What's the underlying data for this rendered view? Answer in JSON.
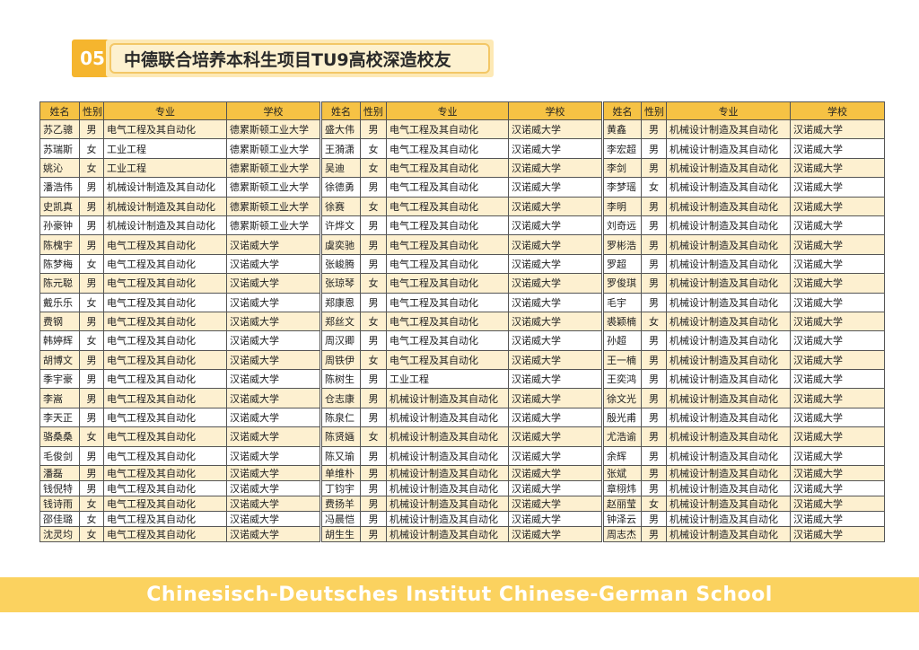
{
  "header": {
    "number": "05",
    "title": "中德联合培养本科生项目TU9高校深造校友"
  },
  "columns": [
    "姓名",
    "性别",
    "专业",
    "学校"
  ],
  "colors": {
    "accent": "#f5b52e",
    "header_bg": "#f6c244",
    "row_alt": "#fdf0d0",
    "banner": "#fbd25f"
  },
  "tables": [
    {
      "rows": [
        [
          "苏乙骢",
          "男",
          "电气工程及其自动化",
          "德累斯顿工业大学"
        ],
        [
          "苏瑞斯",
          "女",
          "工业工程",
          "德累斯顿工业大学"
        ],
        [
          "姚沁",
          "女",
          "工业工程",
          "德累斯顿工业大学"
        ],
        [
          "潘浩伟",
          "男",
          "机械设计制造及其自动化",
          "德累斯顿工业大学"
        ],
        [
          "史凯真",
          "男",
          "机械设计制造及其自动化",
          "德累斯顿工业大学"
        ],
        [
          "孙豪钟",
          "男",
          "机械设计制造及其自动化",
          "德累斯顿工业大学"
        ],
        [
          "陈槐宇",
          "男",
          "电气工程及其自动化",
          "汉诺威大学"
        ],
        [
          "陈梦梅",
          "女",
          "电气工程及其自动化",
          "汉诺威大学"
        ],
        [
          "陈元聪",
          "男",
          "电气工程及其自动化",
          "汉诺威大学"
        ],
        [
          "戴乐乐",
          "女",
          "电气工程及其自动化",
          "汉诺威大学"
        ],
        [
          "费钢",
          "男",
          "电气工程及其自动化",
          "汉诺威大学"
        ],
        [
          "韩婷辉",
          "女",
          "电气工程及其自动化",
          "汉诺威大学"
        ],
        [
          "胡博文",
          "男",
          "电气工程及其自动化",
          "汉诺威大学"
        ],
        [
          "季宇豪",
          "男",
          "电气工程及其自动化",
          "汉诺威大学"
        ],
        [
          "李嵩",
          "男",
          "电气工程及其自动化",
          "汉诺威大学"
        ],
        [
          "李天正",
          "男",
          "电气工程及其自动化",
          "汉诺威大学"
        ],
        [
          "骆桑桑",
          "女",
          "电气工程及其自动化",
          "汉诺威大学"
        ],
        [
          "毛俊剑",
          "男",
          "电气工程及其自动化",
          "汉诺威大学"
        ],
        [
          "潘磊",
          "男",
          "电气工程及其自动化",
          "汉诺威大学"
        ],
        [
          "钱倪特",
          "男",
          "电气工程及其自动化",
          "汉诺威大学"
        ],
        [
          "钱诗雨",
          "女",
          "电气工程及其自动化",
          "汉诺威大学"
        ],
        [
          "邵佳璐",
          "女",
          "电气工程及其自动化",
          "汉诺威大学"
        ],
        [
          "沈灵均",
          "女",
          "电气工程及其自动化",
          "汉诺威大学"
        ]
      ]
    },
    {
      "rows": [
        [
          "盛大伟",
          "男",
          "电气工程及其自动化",
          "汉诺威大学"
        ],
        [
          "王漪潇",
          "女",
          "电气工程及其自动化",
          "汉诺威大学"
        ],
        [
          "吴迪",
          "女",
          "电气工程及其自动化",
          "汉诺威大学"
        ],
        [
          "徐德勇",
          "男",
          "电气工程及其自动化",
          "汉诺威大学"
        ],
        [
          "徐赛",
          "女",
          "电气工程及其自动化",
          "汉诺威大学"
        ],
        [
          "许烨文",
          "男",
          "电气工程及其自动化",
          "汉诺威大学"
        ],
        [
          "虞奕驰",
          "男",
          "电气工程及其自动化",
          "汉诺威大学"
        ],
        [
          "张峻腾",
          "男",
          "电气工程及其自动化",
          "汉诺威大学"
        ],
        [
          "张琼琴",
          "女",
          "电气工程及其自动化",
          "汉诺威大学"
        ],
        [
          "郑康恩",
          "男",
          "电气工程及其自动化",
          "汉诺威大学"
        ],
        [
          "郑丝文",
          "女",
          "电气工程及其自动化",
          "汉诺威大学"
        ],
        [
          "周汉卿",
          "男",
          "电气工程及其自动化",
          "汉诺威大学"
        ],
        [
          "周铁伊",
          "女",
          "电气工程及其自动化",
          "汉诺威大学"
        ],
        [
          "陈树生",
          "男",
          "工业工程",
          "汉诺威大学"
        ],
        [
          "仓志康",
          "男",
          "机械设计制造及其自动化",
          "汉诺威大学"
        ],
        [
          "陈泉仁",
          "男",
          "机械设计制造及其自动化",
          "汉诺威大学"
        ],
        [
          "陈贤婳",
          "女",
          "机械设计制造及其自动化",
          "汉诺威大学"
        ],
        [
          "陈又瑜",
          "男",
          "机械设计制造及其自动化",
          "汉诺威大学"
        ],
        [
          "单维朴",
          "男",
          "机械设计制造及其自动化",
          "汉诺威大学"
        ],
        [
          "丁钧宇",
          "男",
          "机械设计制造及其自动化",
          "汉诺威大学"
        ],
        [
          "费扬羊",
          "男",
          "机械设计制造及其自动化",
          "汉诺威大学"
        ],
        [
          "冯晨恺",
          "男",
          "机械设计制造及其自动化",
          "汉诺威大学"
        ],
        [
          "胡生生",
          "男",
          "机械设计制造及其自动化",
          "汉诺威大学"
        ]
      ]
    },
    {
      "rows": [
        [
          "黄鑫",
          "男",
          "机械设计制造及其自动化",
          "汉诺威大学"
        ],
        [
          "李宏超",
          "男",
          "机械设计制造及其自动化",
          "汉诺威大学"
        ],
        [
          "李剑",
          "男",
          "机械设计制造及其自动化",
          "汉诺威大学"
        ],
        [
          "李梦瑶",
          "女",
          "机械设计制造及其自动化",
          "汉诺威大学"
        ],
        [
          "李明",
          "男",
          "机械设计制造及其自动化",
          "汉诺威大学"
        ],
        [
          "刘奇远",
          "男",
          "机械设计制造及其自动化",
          "汉诺威大学"
        ],
        [
          "罗彬浩",
          "男",
          "机械设计制造及其自动化",
          "汉诺威大学"
        ],
        [
          "罗超",
          "男",
          "机械设计制造及其自动化",
          "汉诺威大学"
        ],
        [
          "罗俊琪",
          "男",
          "机械设计制造及其自动化",
          "汉诺威大学"
        ],
        [
          "毛宇",
          "男",
          "机械设计制造及其自动化",
          "汉诺威大学"
        ],
        [
          "裘颖楠",
          "女",
          "机械设计制造及其自动化",
          "汉诺威大学"
        ],
        [
          "孙超",
          "男",
          "机械设计制造及其自动化",
          "汉诺威大学"
        ],
        [
          "王一楠",
          "男",
          "机械设计制造及其自动化",
          "汉诺威大学"
        ],
        [
          "王奕鸿",
          "男",
          "机械设计制造及其自动化",
          "汉诺威大学"
        ],
        [
          "徐文光",
          "男",
          "机械设计制造及其自动化",
          "汉诺威大学"
        ],
        [
          "殷光甫",
          "男",
          "机械设计制造及其自动化",
          "汉诺威大学"
        ],
        [
          "尤浩谕",
          "男",
          "机械设计制造及其自动化",
          "汉诺威大学"
        ],
        [
          "余辉",
          "男",
          "机械设计制造及其自动化",
          "汉诺威大学"
        ],
        [
          "张斌",
          "男",
          "机械设计制造及其自动化",
          "汉诺威大学"
        ],
        [
          "章栩炜",
          "男",
          "机械设计制造及其自动化",
          "汉诺威大学"
        ],
        [
          "赵丽莹",
          "女",
          "机械设计制造及其自动化",
          "汉诺威大学"
        ],
        [
          "钟泽云",
          "男",
          "机械设计制造及其自动化",
          "汉诺威大学"
        ],
        [
          "周志杰",
          "男",
          "机械设计制造及其自动化",
          "汉诺威大学"
        ]
      ]
    }
  ],
  "footer": {
    "banner": "Chinesisch-Deutsches Institut  Chinese-German School"
  }
}
